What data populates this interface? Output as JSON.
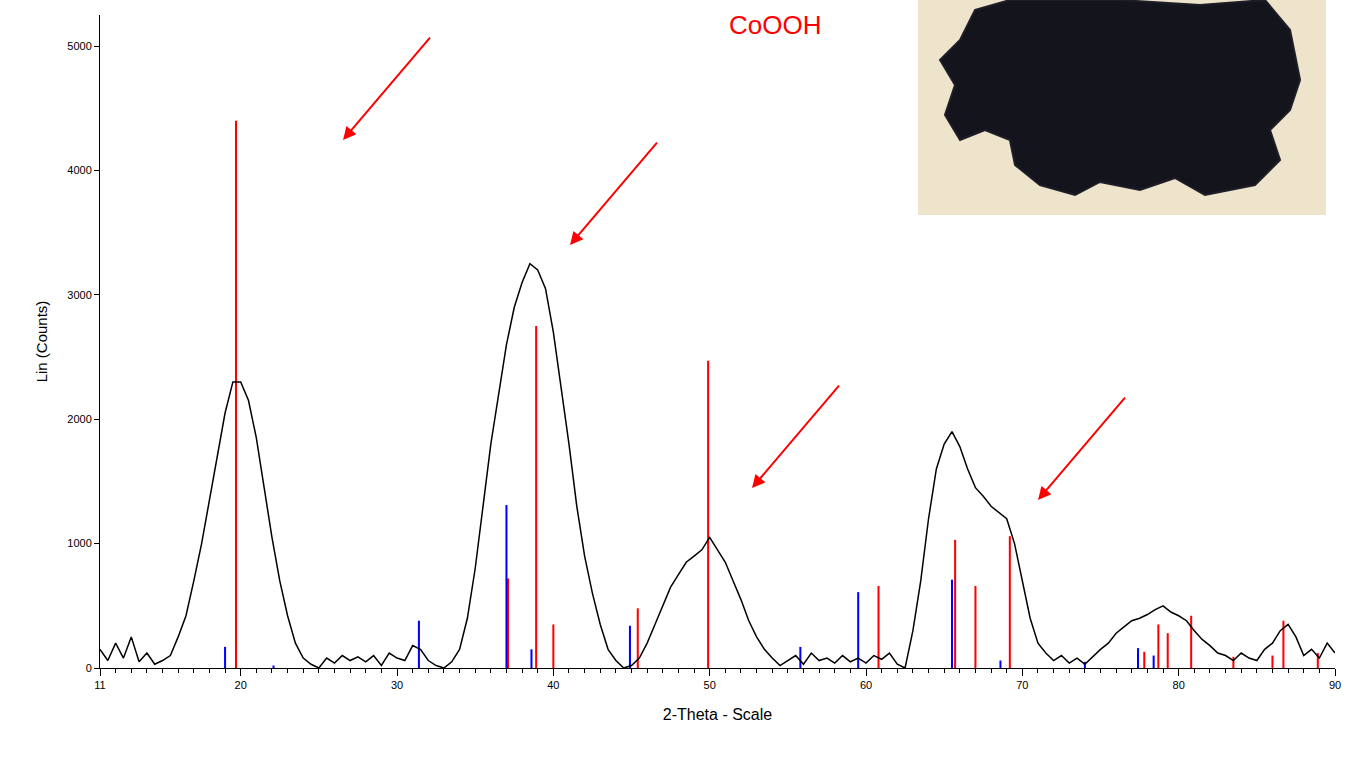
{
  "chart_data": {
    "type": "line",
    "x_label": "2-Theta - Scale",
    "y_label": "Lin (Counts)",
    "annotations": [
      {
        "text": "CoOOH",
        "color": "#ff0000"
      }
    ],
    "xlim": [
      11,
      90
    ],
    "ylim": [
      0,
      5250
    ],
    "xticks": [
      11,
      20,
      30,
      40,
      50,
      60,
      70,
      80,
      90
    ],
    "yticks": [
      0,
      1000,
      2000,
      3000,
      4000,
      5000
    ],
    "grid": false,
    "series": [
      {
        "type": "line",
        "color": "#000000",
        "x": [
          11,
          11.5,
          12,
          12.5,
          13,
          13.5,
          14,
          14.5,
          15,
          15.5,
          16,
          16.5,
          17,
          17.5,
          18,
          18.5,
          19,
          19.5,
          20,
          20.5,
          21,
          21.5,
          22,
          22.5,
          23,
          23.5,
          24,
          24.5,
          25,
          25.5,
          26,
          26.5,
          27,
          27.5,
          28,
          28.5,
          29,
          29.5,
          30,
          30.5,
          31,
          31.5,
          32,
          32.5,
          33,
          33.5,
          34,
          34.5,
          35,
          35.5,
          36,
          36.5,
          37,
          37.5,
          38,
          38.5,
          39,
          39.5,
          40,
          40.5,
          41,
          41.5,
          42,
          42.5,
          43,
          43.5,
          44,
          44.5,
          45,
          45.5,
          46,
          46.5,
          47,
          47.5,
          48,
          48.5,
          49,
          49.5,
          50,
          50.5,
          51,
          51.5,
          52,
          52.5,
          53,
          53.5,
          54,
          54.5,
          55,
          55.5,
          56,
          56.5,
          57,
          57.5,
          58,
          58.5,
          59,
          59.5,
          60,
          60.5,
          61,
          61.5,
          62,
          62.5,
          63,
          63.5,
          64,
          64.5,
          65,
          65.5,
          66,
          66.5,
          67,
          67.5,
          68,
          68.5,
          69,
          69.5,
          70,
          70.5,
          71,
          71.5,
          72,
          72.5,
          73,
          73.5,
          74,
          74.5,
          75,
          75.5,
          76,
          76.5,
          77,
          77.5,
          78,
          78.5,
          79,
          79.5,
          80,
          80.5,
          81,
          81.5,
          82,
          82.5,
          83,
          83.5,
          84,
          84.5,
          85,
          85.5,
          86,
          86.5,
          87,
          87.5,
          88,
          88.5,
          89,
          89.5,
          90
        ],
        "values": [
          150,
          60,
          200,
          80,
          250,
          50,
          120,
          30,
          60,
          100,
          250,
          420,
          700,
          1000,
          1350,
          1700,
          2050,
          2300,
          2300,
          2150,
          1850,
          1450,
          1050,
          700,
          420,
          200,
          80,
          30,
          0,
          80,
          40,
          100,
          60,
          90,
          50,
          100,
          20,
          120,
          80,
          60,
          180,
          150,
          60,
          20,
          0,
          50,
          150,
          400,
          800,
          1300,
          1800,
          2200,
          2600,
          2900,
          3100,
          3250,
          3200,
          3050,
          2700,
          2250,
          1800,
          1300,
          900,
          600,
          350,
          150,
          60,
          0,
          20,
          80,
          200,
          350,
          500,
          650,
          750,
          850,
          900,
          950,
          1050,
          950,
          850,
          700,
          550,
          380,
          250,
          150,
          80,
          20,
          60,
          100,
          30,
          120,
          60,
          80,
          40,
          100,
          50,
          80,
          40,
          100,
          70,
          120,
          30,
          0,
          300,
          700,
          1200,
          1600,
          1800,
          1900,
          1780,
          1600,
          1450,
          1380,
          1300,
          1250,
          1200,
          1000,
          700,
          400,
          200,
          120,
          60,
          100,
          40,
          80,
          30,
          90,
          150,
          200,
          280,
          330,
          380,
          400,
          430,
          470,
          500,
          450,
          420,
          380,
          300,
          230,
          180,
          120,
          100,
          60,
          120,
          80,
          60,
          150,
          200,
          300,
          350,
          250,
          100,
          150,
          80,
          200,
          120
        ]
      },
      {
        "type": "bar",
        "color": "#ff0000",
        "x": [
          19.7,
          37.1,
          38.9,
          40.0,
          45.4,
          49.9,
          60.8,
          65.7,
          67.0,
          69.2,
          77.8,
          78.7,
          79.3,
          80.8,
          83.5,
          86.0,
          86.7,
          88.9
        ],
        "values": [
          4400,
          720,
          2750,
          350,
          480,
          2470,
          660,
          1030,
          660,
          1060,
          130,
          350,
          280,
          420,
          90,
          100,
          380,
          120
        ]
      },
      {
        "type": "bar",
        "color": "#0000ff",
        "x": [
          19.0,
          22.1,
          31.4,
          37.0,
          38.6,
          44.9,
          55.8,
          59.5,
          65.5,
          68.6,
          74.0,
          77.4,
          78.4
        ],
        "values": [
          170,
          20,
          380,
          1310,
          150,
          340,
          170,
          610,
          710,
          60,
          50,
          160,
          100
        ]
      }
    ]
  }
}
